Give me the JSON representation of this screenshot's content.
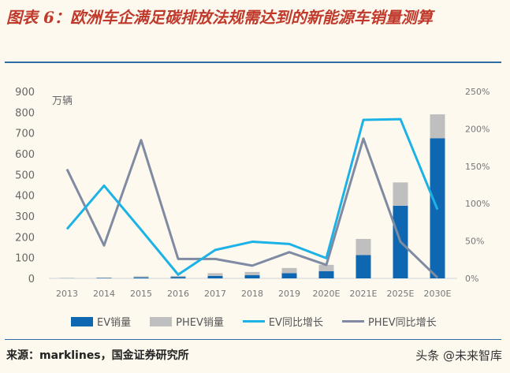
{
  "title": "图表 6：欧洲车企满足碳排放法规需达到的新能源车销量测算",
  "source": "来源：marklines，国金证券研究所",
  "watermark": "头条 @未来智库",
  "chart_data": {
    "type": "bar+line",
    "categories": [
      "2013",
      "2014",
      "2015",
      "2016",
      "2017",
      "2018",
      "2019",
      "2020E",
      "2021E",
      "2025E",
      "2030E"
    ],
    "unit_label": "万辆",
    "y_left": {
      "lim": [
        0,
        900
      ],
      "ticks": [
        "0",
        "100",
        "200",
        "300",
        "400",
        "500",
        "600",
        "700",
        "800",
        "900"
      ]
    },
    "y_right": {
      "lim": [
        0,
        250
      ],
      "ticks": [
        "0%",
        "50%",
        "100%",
        "150%",
        "200%",
        "250%"
      ]
    },
    "grid": false,
    "legend_position": "bottom",
    "series": [
      {
        "name": "EV销量",
        "type": "bar",
        "stack": "sales",
        "axis": "left",
        "color": "#0e67b0",
        "values": [
          1,
          2,
          5,
          7,
          12,
          16,
          25,
          35,
          112,
          350,
          675
        ]
      },
      {
        "name": "PHEV销量",
        "type": "bar",
        "stack": "sales",
        "axis": "left",
        "color": "#bfbfbf",
        "values": [
          1,
          2,
          5,
          5,
          13,
          15,
          25,
          30,
          78,
          112,
          115
        ]
      },
      {
        "name": "EV同比增长",
        "type": "line",
        "axis": "right",
        "unit": "%",
        "color": "#1cb2e6",
        "values": [
          66,
          124,
          65,
          5,
          38,
          49,
          46,
          27,
          212,
          213,
          92
        ]
      },
      {
        "name": "PHEV同比增长",
        "type": "line",
        "axis": "right",
        "unit": "%",
        "color": "#7f8aa3",
        "values": [
          146,
          44,
          185,
          26,
          26,
          17,
          35,
          18,
          187,
          49,
          1
        ]
      }
    ]
  }
}
